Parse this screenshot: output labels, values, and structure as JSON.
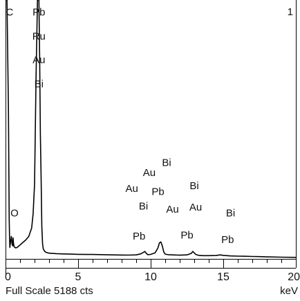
{
  "chart_data": {
    "type": "line",
    "title": "",
    "corner_label": "1",
    "x_unit": "keV",
    "footer": "Full Scale 5188 cts",
    "xlim": [
      0,
      20
    ],
    "ylim": [
      0,
      5188
    ],
    "grid": false,
    "x_ticks": [
      {
        "value": 0,
        "label": "0"
      },
      {
        "value": 5,
        "label": "5"
      },
      {
        "value": 10,
        "label": "10"
      },
      {
        "value": 15,
        "label": "15"
      },
      {
        "value": 20,
        "label": "20"
      }
    ],
    "series": [
      {
        "x": [
          0.0,
          0.1,
          0.2,
          0.25,
          0.28,
          0.3,
          0.35,
          0.4,
          0.45,
          0.5,
          0.52,
          0.55,
          0.6,
          0.7,
          0.8,
          1.0,
          1.2,
          1.4,
          1.6,
          1.8,
          1.9,
          2.0,
          2.1,
          2.2,
          2.25,
          2.3,
          2.35,
          2.4,
          2.45,
          2.5,
          2.55,
          2.6,
          2.7,
          2.8,
          3.0,
          3.5,
          4.0,
          4.5,
          5.0,
          6.0,
          7.0,
          8.0,
          8.5,
          9.0,
          9.3,
          9.5,
          9.6,
          9.7,
          9.8,
          10.0,
          10.3,
          10.5,
          10.6,
          10.7,
          10.8,
          10.9,
          11.0,
          11.2,
          11.5,
          12.0,
          12.5,
          12.8,
          12.9,
          13.0,
          13.1,
          13.3,
          13.6,
          14.0,
          14.5,
          14.8,
          15.0,
          15.5,
          16.0,
          16.5,
          17.0,
          17.5,
          18.0,
          19.0,
          20.0
        ],
        "y": [
          5188,
          5188,
          3000,
          800,
          380,
          230,
          350,
          450,
          300,
          260,
          420,
          300,
          240,
          220,
          230,
          280,
          330,
          380,
          450,
          620,
          900,
          1500,
          3600,
          5188,
          5188,
          5188,
          4000,
          2500,
          1600,
          650,
          300,
          200,
          150,
          130,
          115,
          105,
          100,
          95,
          92,
          88,
          82,
          78,
          76,
          80,
          100,
          130,
          150,
          110,
          85,
          90,
          120,
          220,
          320,
          340,
          260,
          140,
          95,
          85,
          80,
          75,
          80,
          110,
          150,
          120,
          90,
          70,
          65,
          65,
          68,
          80,
          70,
          60,
          55,
          52,
          48,
          45,
          40,
          35,
          30
        ]
      }
    ],
    "peak_labels": [
      {
        "text": "C",
        "x": 0.28,
        "y": 4880
      },
      {
        "text": "Pb",
        "x": 2.3,
        "y": 4880
      },
      {
        "text": "Ru",
        "x": 2.3,
        "y": 4390
      },
      {
        "text": "Au",
        "x": 2.3,
        "y": 3920
      },
      {
        "text": "Bi",
        "x": 2.3,
        "y": 3440
      },
      {
        "text": "O",
        "x": 0.62,
        "y": 850
      },
      {
        "text": "Bi",
        "x": 11.1,
        "y": 1860
      },
      {
        "text": "Au",
        "x": 9.9,
        "y": 1660
      },
      {
        "text": "Au",
        "x": 8.7,
        "y": 1340
      },
      {
        "text": "Pb",
        "x": 10.5,
        "y": 1280
      },
      {
        "text": "Bi",
        "x": 13.0,
        "y": 1400
      },
      {
        "text": "Bi",
        "x": 9.5,
        "y": 990
      },
      {
        "text": "Au",
        "x": 11.5,
        "y": 930
      },
      {
        "text": "Au",
        "x": 13.1,
        "y": 970
      },
      {
        "text": "Bi",
        "x": 15.5,
        "y": 850
      },
      {
        "text": "Pb",
        "x": 9.2,
        "y": 390
      },
      {
        "text": "Pb",
        "x": 12.5,
        "y": 410
      },
      {
        "text": "Pb",
        "x": 15.3,
        "y": 320
      }
    ]
  }
}
